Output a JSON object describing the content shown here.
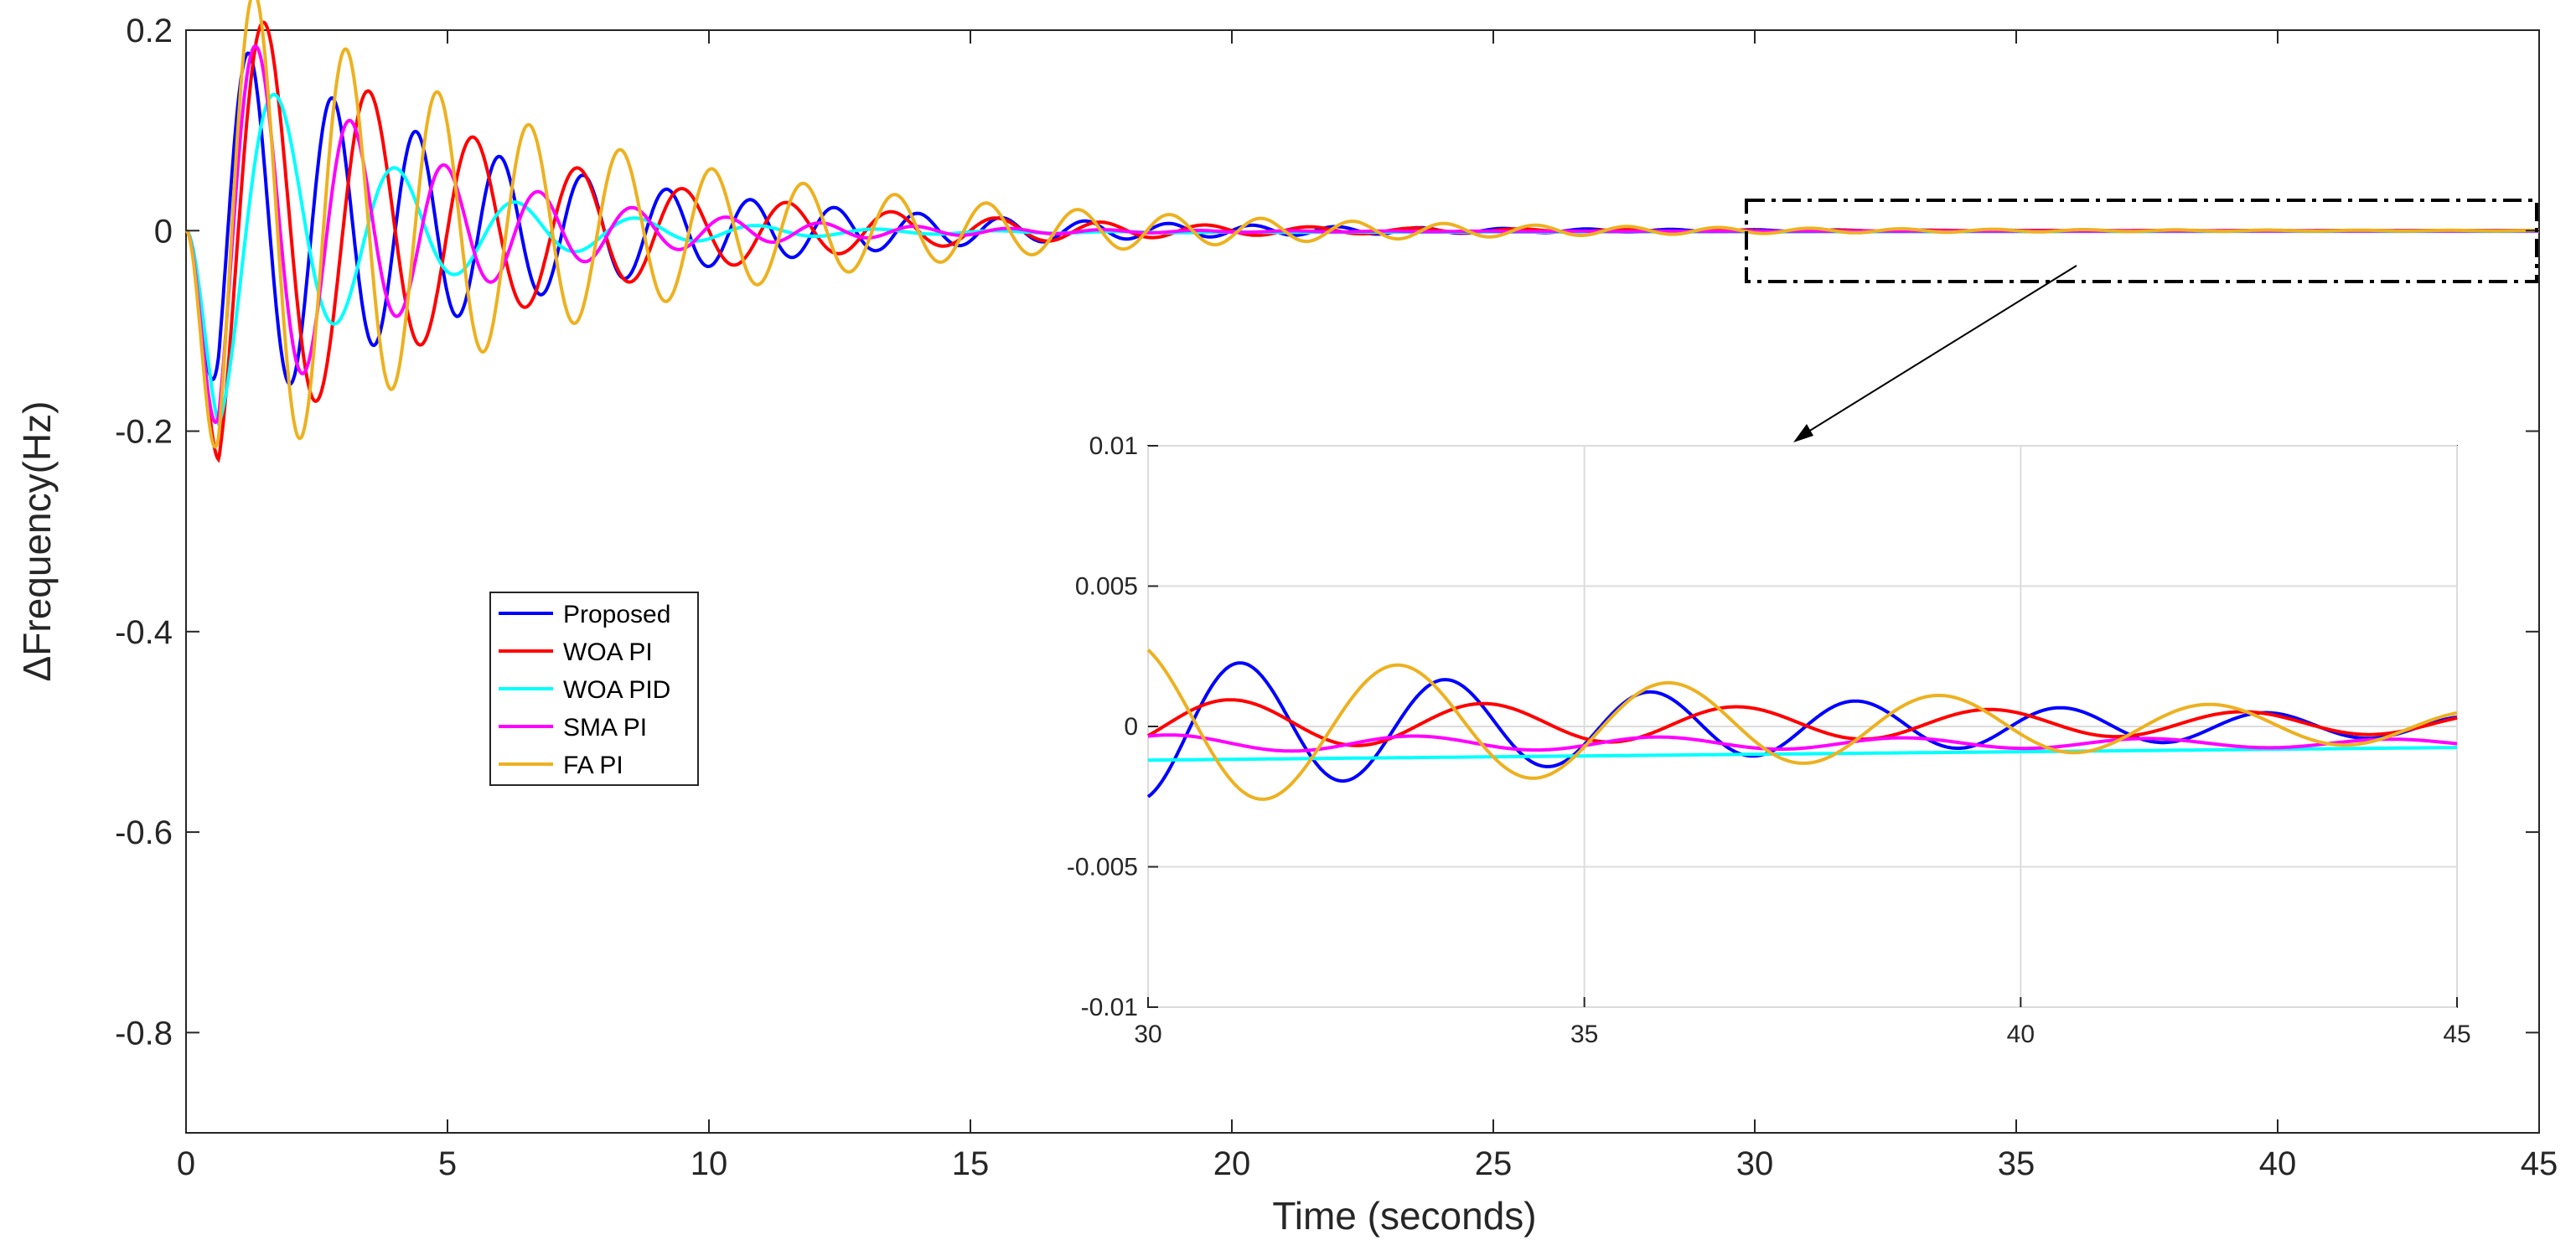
{
  "chart_data": {
    "type": "line",
    "xlabel": "Time (seconds)",
    "ylabel": "ΔFrequency(Hz)",
    "xlim": [
      0,
      45
    ],
    "ylim": [
      -0.9,
      0.2
    ],
    "xticks": [
      "0",
      "5",
      "10",
      "15",
      "20",
      "25",
      "30",
      "35",
      "40",
      "45"
    ],
    "yticks": [
      "0.2",
      "0",
      "-0.2",
      "-0.4",
      "-0.6",
      "-0.8"
    ],
    "grid": false,
    "legend_position": "center-left",
    "series": [
      {
        "name": "Proposed",
        "color": "#0000ff",
        "A": 0.22,
        "tau": 5.5,
        "period": 1.6,
        "offset": 0.0,
        "drift0": 0.0
      },
      {
        "name": "WOA PI",
        "color": "#ff0000",
        "A": 0.28,
        "tau": 5.0,
        "period": 2.0,
        "offset": 0.0,
        "drift0": 0.0
      },
      {
        "name": "WOA PID",
        "color": "#00ffff",
        "A": 0.24,
        "tau": 3.0,
        "period": 2.3,
        "offset": 0.0,
        "drift0": -0.0012
      },
      {
        "name": "SMA PI",
        "color": "#ff00ff",
        "A": 0.27,
        "tau": 3.5,
        "period": 1.8,
        "offset": 0.0,
        "drift0": -0.0006
      },
      {
        "name": "FA PI",
        "color": "#edb120",
        "A": 0.29,
        "tau": 6.5,
        "period": 1.75,
        "offset": 0.0,
        "drift0": 0.0
      }
    ],
    "inset": {
      "xlim": [
        30,
        45
      ],
      "ylim": [
        -0.01,
        0.01
      ],
      "xticks": [
        "30",
        "35",
        "40",
        "45"
      ],
      "yticks": [
        "0.01",
        "0.005",
        "0",
        "-0.005",
        "-0.01"
      ],
      "grid": true,
      "series": [
        {
          "name": "Proposed",
          "amp30": 0.0026,
          "decay": 0.13,
          "period": 2.35,
          "phase": -1.3,
          "base": 0.0
        },
        {
          "name": "WOA PI",
          "amp30": 0.0009,
          "decay": 0.06,
          "period": 2.9,
          "phase": -0.5,
          "base": 0.0001
        },
        {
          "name": "WOA PID",
          "amp30": 0.0,
          "decay": 0.0,
          "period": 1.0,
          "phase": 0.0,
          "base": -0.0012
        },
        {
          "name": "SMA PI",
          "amp30": 0.0003,
          "decay": 0.05,
          "period": 2.8,
          "phase": 1.0,
          "base": -0.0006
        },
        {
          "name": "FA PI",
          "amp30": 0.003,
          "decay": 0.11,
          "period": 3.1,
          "phase": 2.0,
          "base": 0.0
        }
      ]
    }
  }
}
